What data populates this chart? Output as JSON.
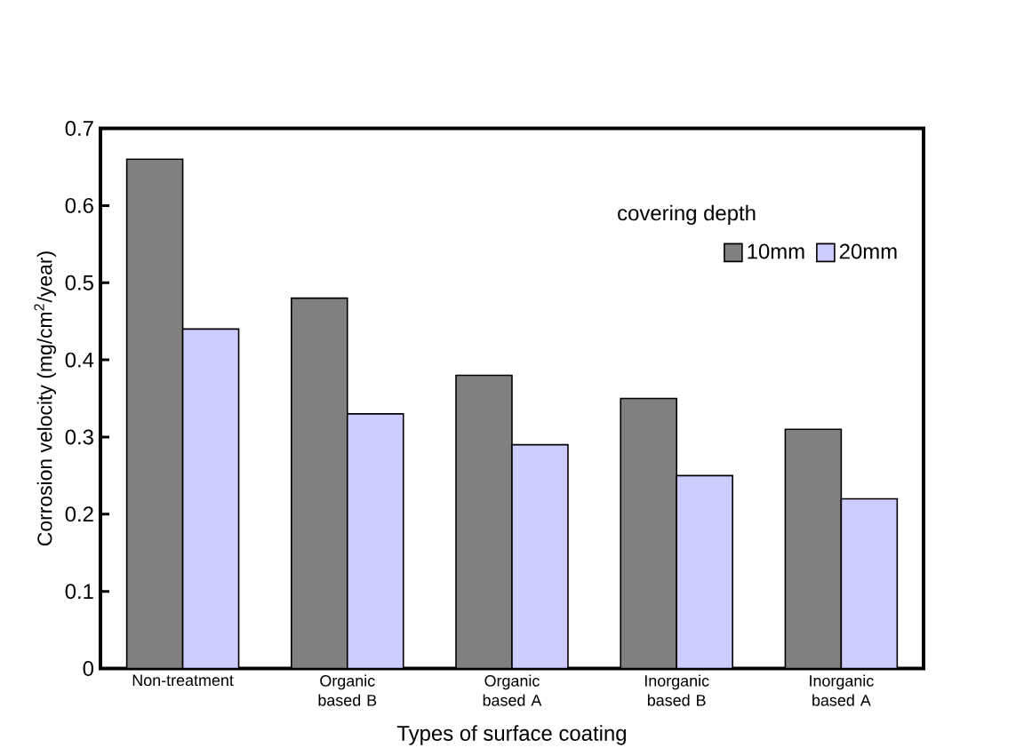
{
  "chart_data": {
    "type": "bar",
    "xlabel": "Types of surface coating",
    "ylabel": "Corrosion velocity (mg/cm$^{2}$/year)",
    "legend_title": "covering depth",
    "categories": [
      "Non-treatment",
      "Organic based B",
      "Organic based A",
      "Inorganic based B",
      "Inorganic based A"
    ],
    "series": [
      {
        "name": "10mm",
        "color": "#808080",
        "values": [
          0.66,
          0.48,
          0.38,
          0.35,
          0.31
        ]
      },
      {
        "name": "20mm",
        "color": "#ccccff",
        "values": [
          0.44,
          0.33,
          0.29,
          0.25,
          0.22
        ]
      }
    ],
    "ylim": [
      0,
      0.7
    ],
    "yticks": [
      0,
      0.1,
      0.2,
      0.3,
      0.4,
      0.5,
      0.6,
      0.7
    ],
    "grid": false,
    "legend": "top right"
  }
}
